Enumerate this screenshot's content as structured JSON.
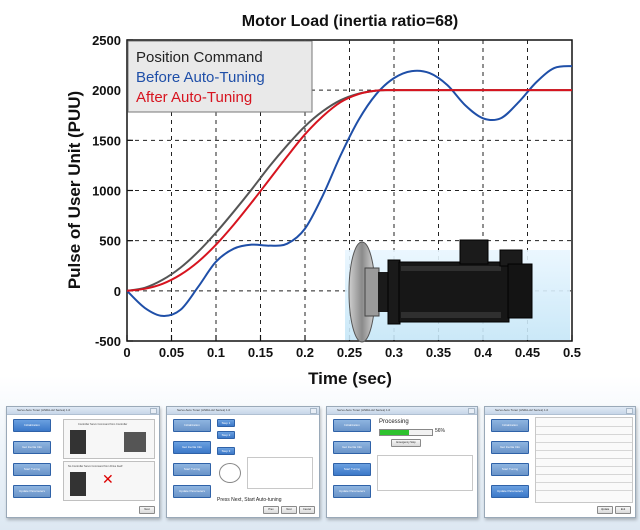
{
  "chart_data": {
    "type": "line",
    "title": "Motor Load (inertia ratio=68)",
    "xlabel": "Time (sec)",
    "ylabel": "Pulse of User Unit (PUU)",
    "xlim": [
      0,
      0.5
    ],
    "ylim": [
      -500,
      2500
    ],
    "xticks": [
      "0",
      "0.05",
      "0.1",
      "0.15",
      "0.2",
      "0.25",
      "0.3",
      "0.35",
      "0.4",
      "0.45",
      "0.5"
    ],
    "yticks": [
      "-500",
      "0",
      "500",
      "1000",
      "1500",
      "2000",
      "2500"
    ],
    "grid": true,
    "legend_position": "top-left",
    "series": [
      {
        "name": "Position Command",
        "color": "#555555",
        "x": [
          0,
          0.02,
          0.04,
          0.06,
          0.08,
          0.1,
          0.12,
          0.14,
          0.16,
          0.18,
          0.2,
          0.22,
          0.24,
          0.26,
          0.28,
          0.29,
          0.3,
          0.35,
          0.4,
          0.45,
          0.5
        ],
        "y": [
          0,
          30,
          110,
          230,
          390,
          580,
          790,
          1010,
          1240,
          1450,
          1640,
          1790,
          1900,
          1965,
          1995,
          2000,
          2000,
          2000,
          2000,
          2000,
          2000
        ]
      },
      {
        "name": "Before Auto-Tuning",
        "color": "#1f4fa8",
        "x": [
          0,
          0.02,
          0.04,
          0.06,
          0.08,
          0.1,
          0.12,
          0.14,
          0.16,
          0.18,
          0.2,
          0.22,
          0.24,
          0.26,
          0.28,
          0.3,
          0.32,
          0.34,
          0.36,
          0.38,
          0.4,
          0.42,
          0.44,
          0.46,
          0.48,
          0.5
        ],
        "y": [
          0,
          -170,
          -250,
          -190,
          40,
          290,
          420,
          460,
          450,
          470,
          620,
          950,
          1350,
          1700,
          1960,
          2120,
          2190,
          2170,
          2050,
          1850,
          1720,
          1720,
          1880,
          2080,
          2220,
          2240
        ]
      },
      {
        "name": "After Auto-Tuning",
        "color": "#d7141f",
        "x": [
          0,
          0.02,
          0.04,
          0.06,
          0.08,
          0.1,
          0.12,
          0.14,
          0.16,
          0.18,
          0.2,
          0.22,
          0.24,
          0.26,
          0.28,
          0.3,
          0.35,
          0.4,
          0.45,
          0.5
        ],
        "y": [
          0,
          20,
          70,
          160,
          290,
          460,
          660,
          880,
          1110,
          1340,
          1560,
          1740,
          1880,
          1960,
          1995,
          2000,
          2000,
          2000,
          2000,
          2000
        ]
      }
    ]
  },
  "icons": [
    "servo-motor-icon"
  ],
  "thumbnails": [
    {
      "title": "Servo Auto Tuner (ASDA-A2 Series) 1.0",
      "steps": [
        "Initialization",
        "Get Inertia Info",
        "Start Tuning",
        "Update Parameters"
      ],
      "panel_top": "Controller Servo Command from Controller",
      "panel_bottom": "No Controller Servo Command from Drive Itself",
      "button": "Next"
    },
    {
      "title": "Servo Auto Tuner (ASDA-A2 Series) 1.0",
      "steps": [
        "Initialization",
        "Get Inertia Info",
        "Start Tuning",
        "Update Parameters"
      ],
      "step_labels": [
        "Step 1",
        "Step 2",
        "Step 3"
      ],
      "caption": "Press Next, Start Auto-tuning",
      "buttons": [
        "Prev",
        "Next",
        "Cancel"
      ]
    },
    {
      "title": "Servo Auto Tuner (ASDA-A2 Series) 1.0",
      "steps": [
        "Initialization",
        "Get Inertia Info",
        "Start Tuning",
        "Update Parameters"
      ],
      "status": "Processing",
      "progress_label": "56%",
      "progress": 0.56,
      "button": "Emergency Stop"
    },
    {
      "title": "Servo Auto Tuner (ASDA-A2 Series) 1.0",
      "steps": [
        "Initialization",
        "Get Inertia Info",
        "Start Tuning",
        "Update Parameters"
      ],
      "buttons": [
        "Update",
        "Exit"
      ]
    }
  ]
}
